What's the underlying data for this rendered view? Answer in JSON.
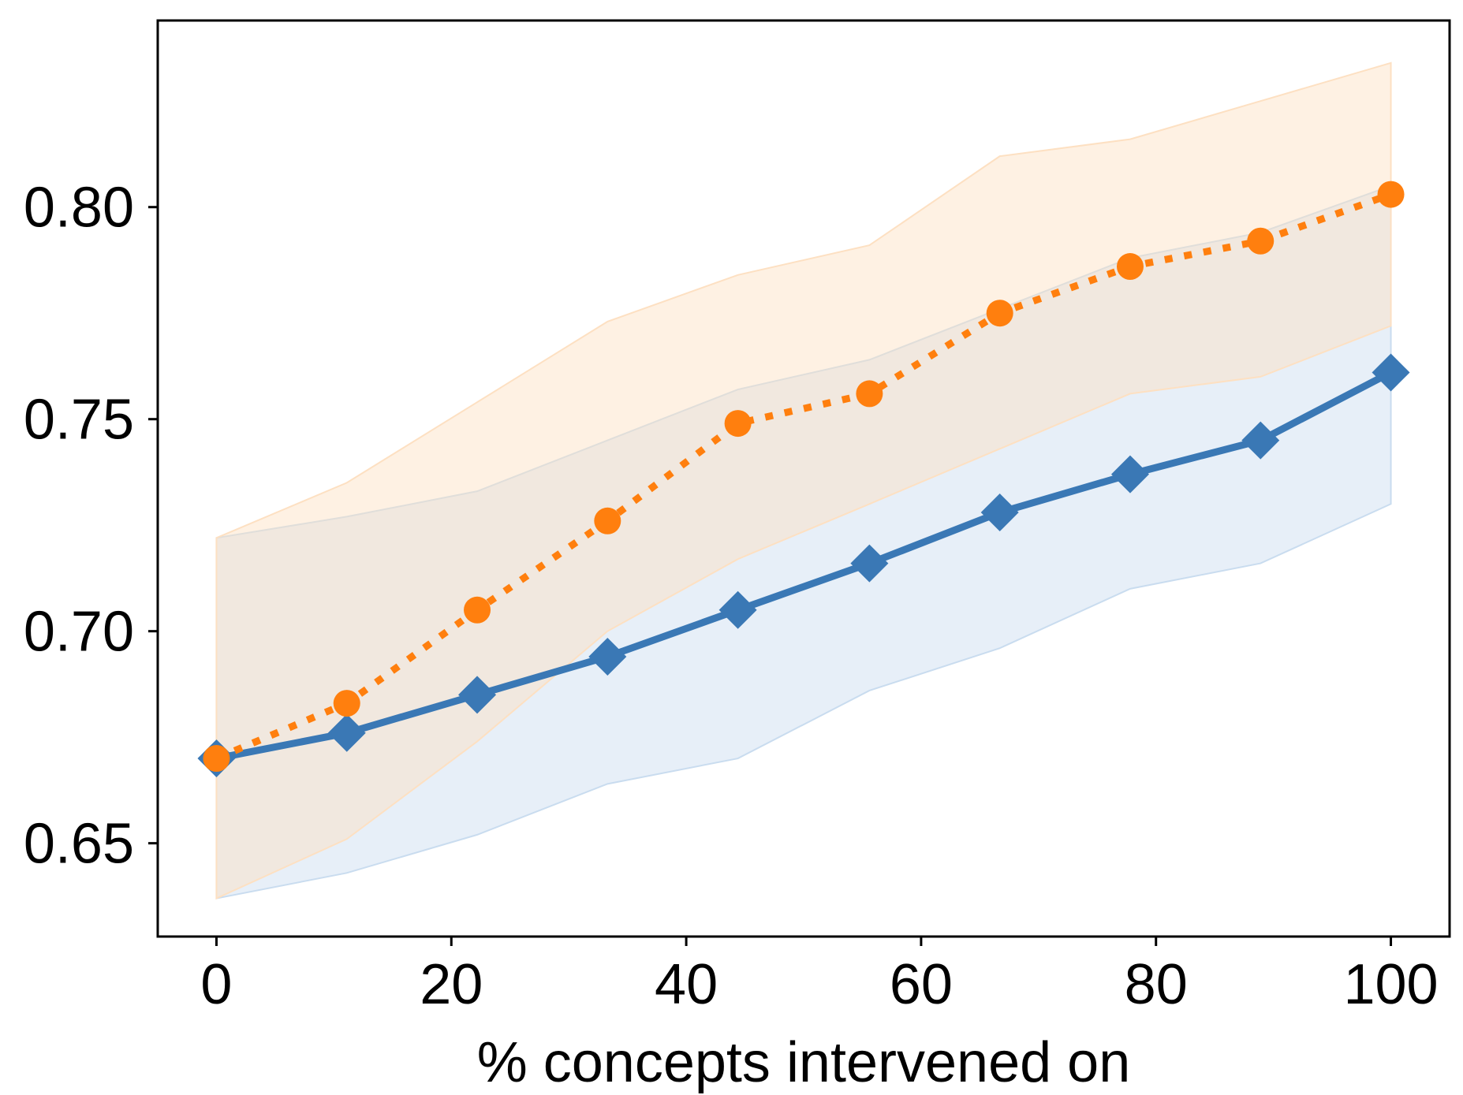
{
  "chart_data": {
    "type": "line",
    "title": "",
    "xlabel": "% concepts intervened on",
    "ylabel": "",
    "xlim": [
      -5,
      105
    ],
    "ylim": [
      0.628,
      0.844
    ],
    "xticks": [
      0,
      20,
      40,
      60,
      80,
      100
    ],
    "yticks": [
      0.65,
      0.7,
      0.75,
      0.8
    ],
    "xtick_labels": [
      "0",
      "20",
      "40",
      "60",
      "80",
      "100"
    ],
    "ytick_labels": [
      "0.65",
      "0.70",
      "0.75",
      "0.80"
    ],
    "grid": false,
    "legend": "none",
    "x": [
      0,
      11.1,
      22.2,
      33.3,
      44.4,
      55.6,
      66.7,
      77.8,
      88.9,
      100
    ],
    "series": [
      {
        "name": "series-blue",
        "color": "#3a78b5",
        "line_style": "solid",
        "marker": "diamond",
        "values": [
          0.67,
          0.676,
          0.685,
          0.694,
          0.705,
          0.716,
          0.728,
          0.737,
          0.745,
          0.761
        ],
        "lower": [
          0.637,
          0.643,
          0.652,
          0.664,
          0.67,
          0.686,
          0.696,
          0.71,
          0.716,
          0.73
        ],
        "upper": [
          0.722,
          0.727,
          0.733,
          0.745,
          0.757,
          0.764,
          0.776,
          0.788,
          0.794,
          0.805
        ],
        "band_color": "#c9dcef"
      },
      {
        "name": "series-orange",
        "color": "#ff7f0e",
        "line_style": "dotted",
        "marker": "circle",
        "values": [
          0.67,
          0.683,
          0.705,
          0.726,
          0.749,
          0.756,
          0.775,
          0.786,
          0.792,
          0.803
        ],
        "lower": [
          0.637,
          0.651,
          0.674,
          0.7,
          0.717,
          0.73,
          0.743,
          0.756,
          0.76,
          0.772
        ],
        "upper": [
          0.722,
          0.735,
          0.754,
          0.773,
          0.784,
          0.791,
          0.812,
          0.816,
          0.825,
          0.834
        ],
        "band_color": "#fde0c2"
      }
    ]
  }
}
